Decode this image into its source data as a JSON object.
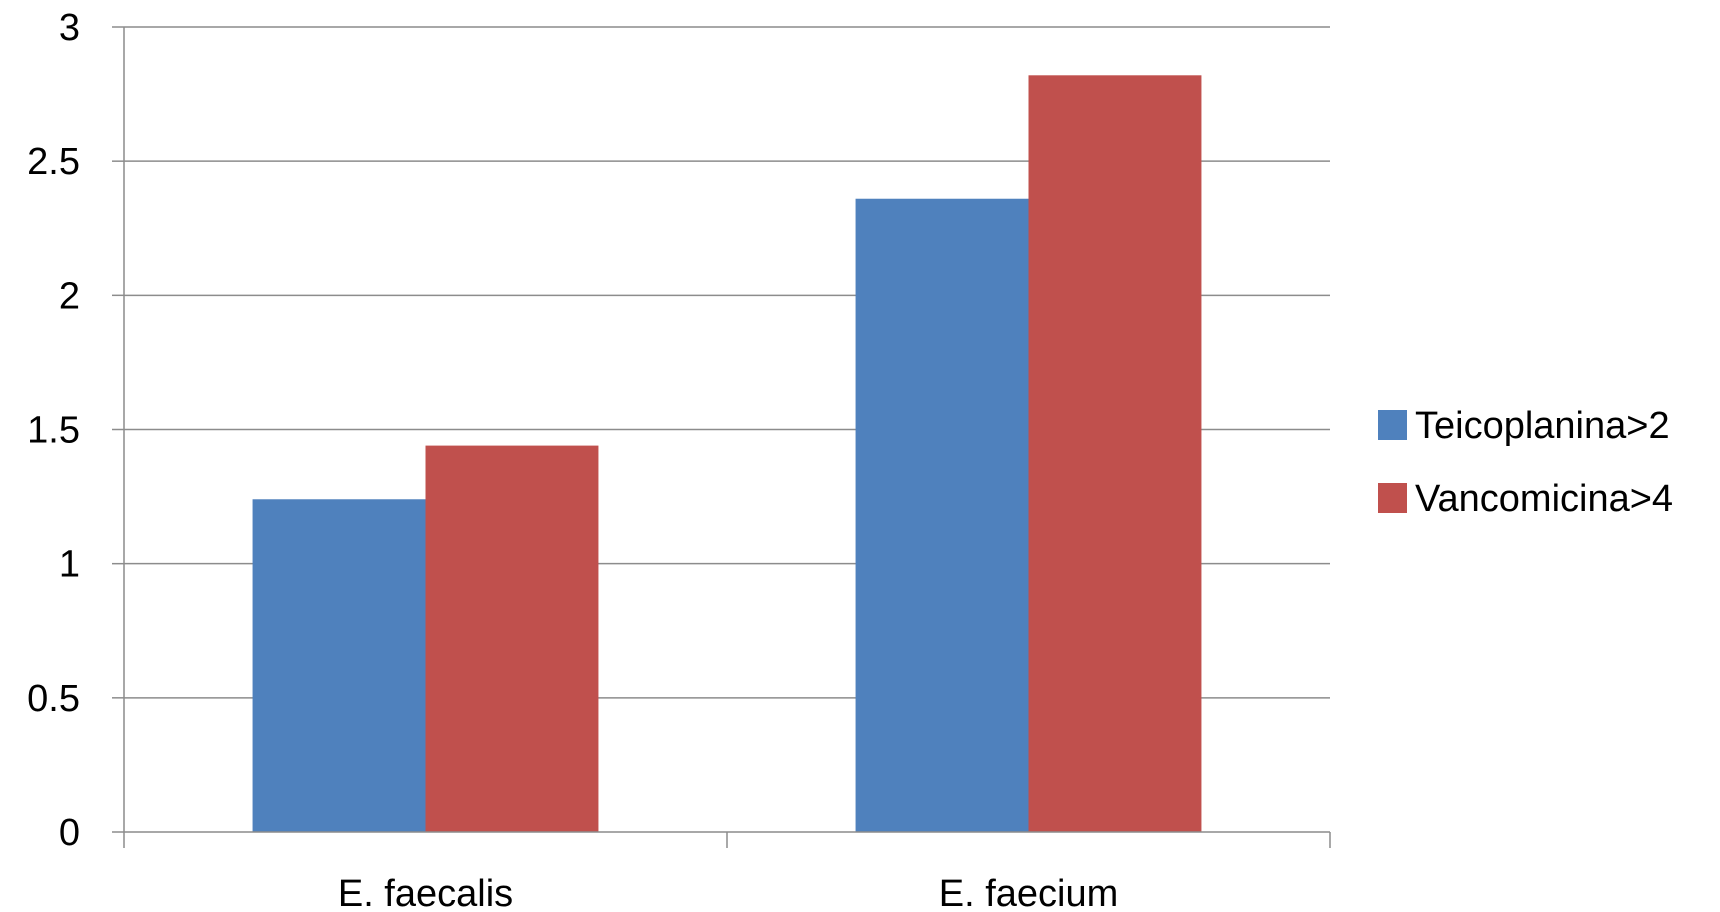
{
  "chart_data": {
    "type": "bar",
    "title": "",
    "xlabel": "",
    "ylabel": "",
    "categories": [
      "E. faecalis",
      "E. faecium"
    ],
    "series": [
      {
        "name": "Teicoplanina>2",
        "values": [
          1.24,
          2.36
        ],
        "color": "#4F81BD"
      },
      {
        "name": "Vancomicina>4",
        "values": [
          1.44,
          2.82
        ],
        "color": "#C0504D"
      }
    ],
    "ylim": [
      0,
      3
    ],
    "yticks": [
      "0",
      "0.5",
      "1",
      "1.5",
      "2",
      "2.5",
      "3"
    ],
    "grid": true,
    "legend_position": "right"
  }
}
